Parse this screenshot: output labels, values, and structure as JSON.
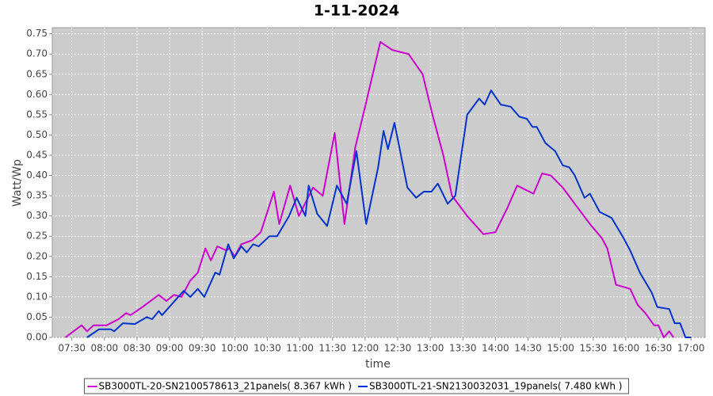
{
  "chart_data": {
    "type": "line",
    "title": "1-11-2024",
    "x_label": "time",
    "y_label": "Watt/Wp",
    "xlim": [
      "07:12",
      "17:13"
    ],
    "ylim": [
      0,
      0.765
    ],
    "xticks": [
      "07:30",
      "08:00",
      "08:30",
      "09:00",
      "09:30",
      "10:00",
      "10:30",
      "11:00",
      "11:30",
      "12:00",
      "12:30",
      "13:00",
      "13:30",
      "14:00",
      "14:30",
      "15:00",
      "15:30",
      "16:00",
      "16:30",
      "17:00"
    ],
    "yticks": [
      {
        "value": 0,
        "label": "0.00"
      },
      0.05,
      {
        "value": 0.1,
        "label": "0.10"
      },
      0.15,
      {
        "value": 0.2,
        "label": "0.20"
      },
      0.25,
      {
        "value": 0.3,
        "label": "0.30"
      },
      0.35,
      {
        "value": 0.4,
        "label": "0.40"
      },
      0.45,
      {
        "value": 0.5,
        "label": "0.50"
      },
      0.55,
      {
        "value": 0.6,
        "label": "0.60"
      },
      0.65,
      {
        "value": 0.7,
        "label": "0.70"
      },
      0.75
    ],
    "grid": true,
    "legend": "bottom",
    "plot_background": "#cccccc",
    "series": [
      {
        "name": "SB3000TL-20-SN2100578613_21panels( 8.367 kWh )",
        "color": "#cc00cc",
        "x": [
          "07:24",
          "07:39",
          "07:44",
          "07:50",
          "08:02",
          "08:13",
          "08:20",
          "08:24",
          "08:35",
          "08:50",
          "08:57",
          "09:04",
          "09:11",
          "09:19",
          "09:26",
          "09:33",
          "09:38",
          "09:44",
          "09:52",
          "09:55",
          "10:00",
          "10:06",
          "10:16",
          "10:24",
          "10:36",
          "10:41",
          "10:51",
          "10:59",
          "11:12",
          "11:21",
          "11:32",
          "11:41",
          "11:51",
          "12:00",
          "12:14",
          "12:25",
          "12:40",
          "12:53",
          "13:02",
          "13:12",
          "13:20",
          "13:34",
          "13:49",
          "14:00",
          "14:11",
          "14:20",
          "14:35",
          "14:43",
          "14:51",
          "15:02",
          "15:13",
          "15:27",
          "15:38",
          "15:43",
          "15:51",
          "16:04",
          "16:11",
          "16:18",
          "16:26",
          "16:30",
          "16:35",
          "16:40",
          "16:44"
        ],
        "values": [
          0,
          0.03,
          0.015,
          0.03,
          0.03,
          0.045,
          0.06,
          0.055,
          0.075,
          0.105,
          0.09,
          0.105,
          0.1,
          0.14,
          0.16,
          0.22,
          0.19,
          0.225,
          0.215,
          0.22,
          0.2,
          0.23,
          0.24,
          0.26,
          0.36,
          0.28,
          0.375,
          0.3,
          0.37,
          0.35,
          0.505,
          0.28,
          0.47,
          0.57,
          0.73,
          0.71,
          0.7,
          0.65,
          0.55,
          0.45,
          0.35,
          0.3,
          0.255,
          0.26,
          0.32,
          0.375,
          0.355,
          0.405,
          0.4,
          0.37,
          0.33,
          0.28,
          0.245,
          0.22,
          0.13,
          0.12,
          0.08,
          0.06,
          0.03,
          0.03,
          0,
          0.015,
          0
        ]
      },
      {
        "name": "SB3000TL-21-SN2130032031_19panels( 7.480 kWh )",
        "color": "#0033cc",
        "x": [
          "07:44",
          "07:55",
          "08:06",
          "08:09",
          "08:17",
          "08:28",
          "08:39",
          "08:44",
          "08:50",
          "08:53",
          "09:03",
          "09:13",
          "09:19",
          "09:26",
          "09:32",
          "09:42",
          "09:46",
          "09:54",
          "09:59",
          "10:06",
          "10:11",
          "10:17",
          "10:22",
          "10:32",
          "10:39",
          "10:50",
          "10:57",
          "11:05",
          "11:08",
          "11:16",
          "11:25",
          "11:34",
          "11:43",
          "11:52",
          "12:01",
          "12:12",
          "12:17",
          "12:21",
          "12:27",
          "12:39",
          "12:47",
          "12:54",
          "13:01",
          "13:07",
          "13:16",
          "13:23",
          "13:34",
          "13:45",
          "13:50",
          "13:56",
          "14:05",
          "14:14",
          "14:22",
          "14:29",
          "14:34",
          "14:38",
          "14:46",
          "14:55",
          "15:02",
          "15:08",
          "15:13",
          "15:22",
          "15:27",
          "15:36",
          "15:47",
          "15:58",
          "16:04",
          "16:13",
          "16:24",
          "16:29",
          "16:40",
          "16:45",
          "16:50",
          "16:55",
          "17:00"
        ],
        "values": [
          0,
          0.02,
          0.02,
          0.015,
          0.035,
          0.033,
          0.05,
          0.045,
          0.065,
          0.055,
          0.085,
          0.115,
          0.1,
          0.12,
          0.1,
          0.16,
          0.155,
          0.23,
          0.195,
          0.225,
          0.21,
          0.23,
          0.225,
          0.25,
          0.25,
          0.3,
          0.345,
          0.3,
          0.375,
          0.305,
          0.275,
          0.375,
          0.33,
          0.46,
          0.28,
          0.42,
          0.51,
          0.465,
          0.53,
          0.37,
          0.345,
          0.36,
          0.36,
          0.38,
          0.33,
          0.35,
          0.55,
          0.59,
          0.575,
          0.61,
          0.575,
          0.57,
          0.545,
          0.54,
          0.52,
          0.52,
          0.48,
          0.46,
          0.425,
          0.42,
          0.4,
          0.345,
          0.355,
          0.31,
          0.295,
          0.245,
          0.215,
          0.16,
          0.11,
          0.075,
          0.07,
          0.035,
          0.035,
          0,
          0
        ]
      }
    ]
  }
}
